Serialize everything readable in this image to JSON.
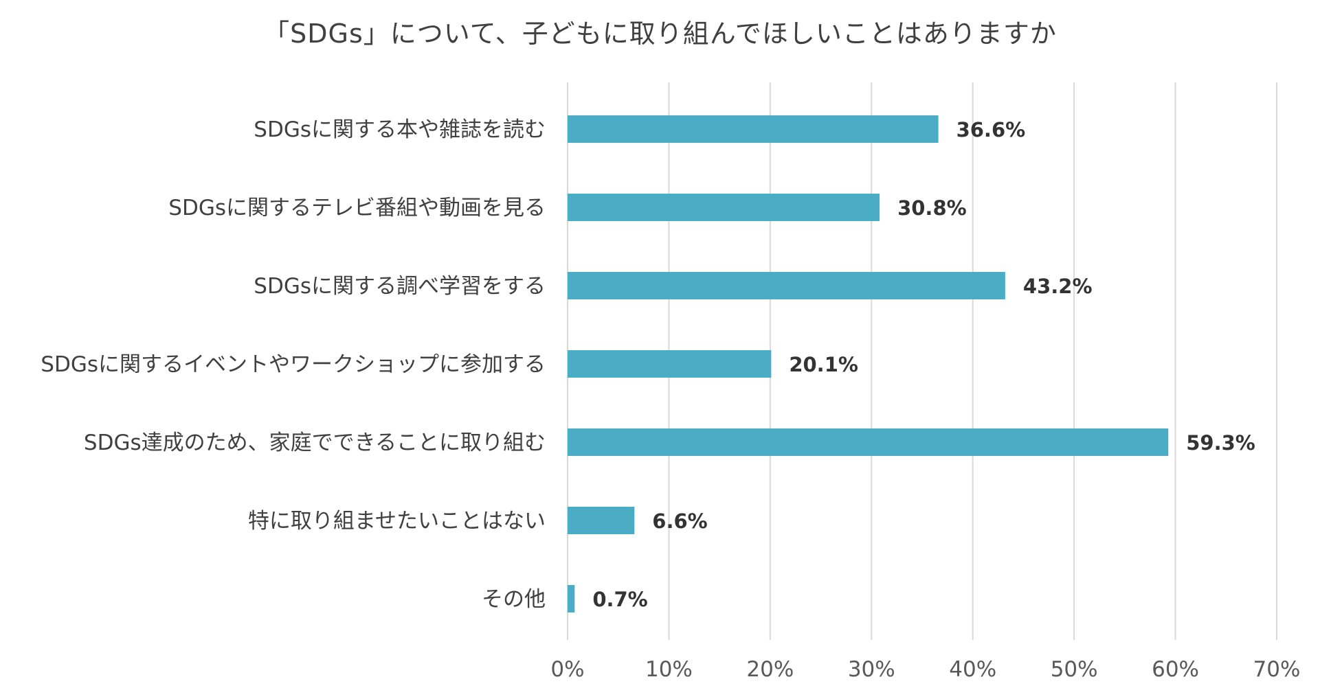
{
  "chart_data": {
    "type": "bar",
    "orientation": "horizontal",
    "title": "「SDGs」について、子どもに取り組んでほしいことはありますか",
    "categories": [
      "SDGsに関する本や雑誌を読む",
      "SDGsに関するテレビ番組や動画を見る",
      "SDGsに関する調べ学習をする",
      "SDGsに関するイベントやワークショップに参加する",
      "SDGs達成のため、家庭でできることに取り組む",
      "特に取り組ませたいことはない",
      "その他"
    ],
    "values": [
      36.6,
      30.8,
      43.2,
      20.1,
      59.3,
      6.6,
      0.7
    ],
    "data_labels": [
      "36.6%",
      "30.8%",
      "43.2%",
      "20.1%",
      "59.3%",
      "6.6%",
      "0.7%"
    ],
    "xlim": [
      0,
      70
    ],
    "xticks": [
      0,
      10,
      20,
      30,
      40,
      50,
      60,
      70
    ],
    "xtick_labels": [
      "0%",
      "10%",
      "20%",
      "30%",
      "40%",
      "50%",
      "60%",
      "70%"
    ],
    "grid": "vertical",
    "legend": "none",
    "bar_color": "#4BACC6",
    "grid_color": "#D9D9D9"
  }
}
